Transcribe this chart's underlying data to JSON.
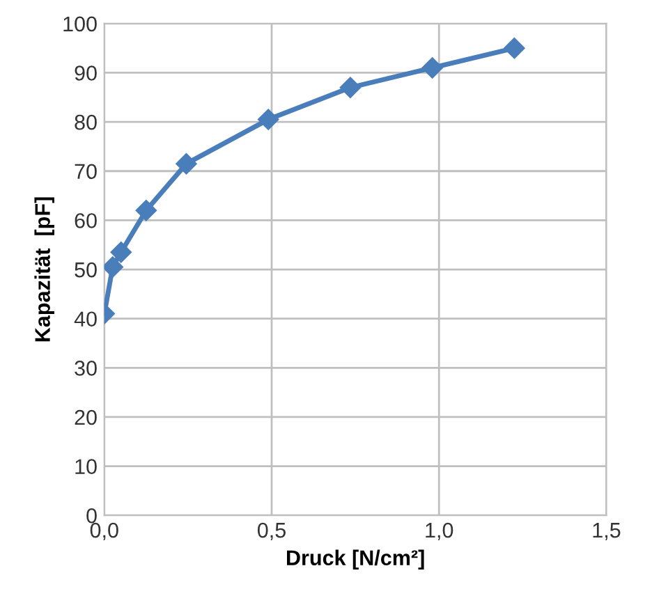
{
  "chart_data": {
    "type": "line",
    "xlabel": "Druck [N/cm²]",
    "ylabel": "Kapazität  [pF]",
    "series": [
      {
        "color": "#4a7ebb",
        "x": [
          0,
          0.025,
          0.05,
          0.125,
          0.245,
          0.49,
          0.735,
          0.98,
          1.225
        ],
        "values": [
          41,
          50.5,
          53.5,
          62,
          71.5,
          80.5,
          87,
          91,
          95
        ]
      }
    ],
    "xlim": [
      0,
      1.5
    ],
    "xticks": [
      {
        "value": 0,
        "label": "0,0"
      },
      {
        "value": 0.5,
        "label": "0,5"
      },
      {
        "value": 1,
        "label": "1,0"
      },
      {
        "value": 1.5,
        "label": "1,5"
      }
    ],
    "ylim": [
      0,
      100
    ],
    "yticks": [
      0,
      10,
      20,
      30,
      40,
      50,
      60,
      70,
      80,
      90,
      100
    ],
    "grid": true,
    "marker": "diamond",
    "line_style": "solid"
  }
}
